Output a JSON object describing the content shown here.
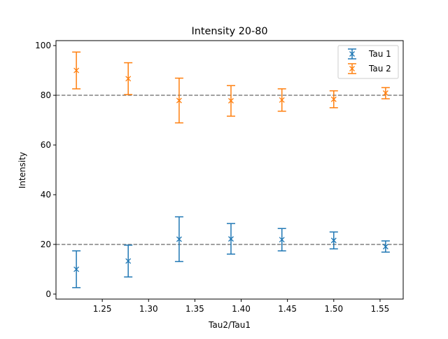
{
  "chart_data": {
    "type": "scatter",
    "title": "Intensity 20-80",
    "xlabel": "Tau2/Tau1",
    "ylabel": "Intensity",
    "xlim": [
      1.2,
      1.575
    ],
    "ylim": [
      -2,
      102
    ],
    "xticks": [
      "1.25",
      "1.30",
      "1.35",
      "1.40",
      "1.45",
      "1.50",
      "1.55"
    ],
    "yticks": [
      "0",
      "20",
      "40",
      "60",
      "80",
      "100"
    ],
    "legend_position": "top-right",
    "reference_lines": [
      20,
      80
    ],
    "series": [
      {
        "name": "Tau 1",
        "color": "#1f77b4",
        "marker": "x",
        "x": [
          1.222,
          1.278,
          1.333,
          1.389,
          1.444,
          1.5,
          1.556
        ],
        "y": [
          10,
          13.3,
          22.1,
          22.2,
          21.9,
          21.6,
          19.1
        ],
        "yerr_low": [
          2.6,
          6.9,
          13.1,
          16.1,
          17.4,
          18.2,
          16.9
        ],
        "yerr_high": [
          17.4,
          19.7,
          31.1,
          28.4,
          26.4,
          25.0,
          21.4
        ]
      },
      {
        "name": "Tau 2",
        "color": "#ff7f0e",
        "marker": "x",
        "x": [
          1.222,
          1.278,
          1.333,
          1.389,
          1.444,
          1.5,
          1.556
        ],
        "y": [
          90,
          86.7,
          77.9,
          77.8,
          78.1,
          78.4,
          80.9
        ],
        "yerr_low": [
          82.6,
          80.3,
          68.9,
          71.6,
          73.6,
          75.0,
          78.6
        ],
        "yerr_high": [
          97.4,
          93.1,
          86.9,
          83.9,
          82.6,
          81.8,
          83.1
        ]
      }
    ]
  }
}
